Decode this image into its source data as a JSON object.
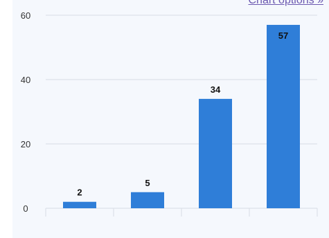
{
  "chart_options_label": "Chart options »",
  "colors": {
    "bar": "#2f7ed8",
    "grid": "#d8dde5",
    "axis_text": "#333333",
    "label_text": "#111111",
    "link": "#6b58b0"
  },
  "chart_data": {
    "type": "bar",
    "categories": [
      "",
      "",
      "",
      ""
    ],
    "values": [
      2,
      5,
      34,
      57
    ],
    "data_labels": [
      "2",
      "5",
      "34",
      "57"
    ],
    "y_ticks": [
      0,
      20,
      40,
      60
    ],
    "ylim": [
      0,
      60
    ],
    "grid": true,
    "title": "",
    "xlabel": "",
    "ylabel": ""
  }
}
